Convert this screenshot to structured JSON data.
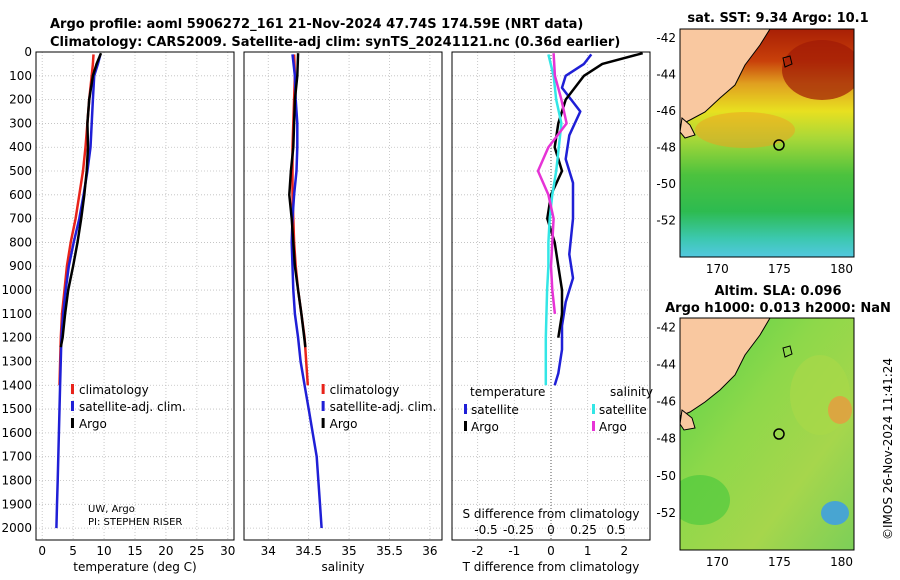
{
  "figure": {
    "title_line1": "Argo profile: aoml 5906272_161 21-Nov-2024 47.74S 174.59E (NRT data)",
    "title_line2": "Climatology: CARS2009. Satellite-adj clim: synTS_20241121.nc (0.36d earlier)",
    "credit_uw": "UW, Argo",
    "credit_pi": "PI: STEPHEN RISER",
    "timestamp": "©IMOS 26-Nov-2024 11:41:24"
  },
  "colors": {
    "climatology": "#e8231a",
    "satellite": "#1f1fd6",
    "argo": "#000000",
    "sal_sat": "#33e6e6",
    "sal_argo": "#e633d6",
    "land": "#f9c8a0"
  },
  "chart_data": [
    {
      "type": "line",
      "id": "temperature",
      "xlabel": "temperature (deg C)",
      "ylabel": "",
      "xlim": [
        -1,
        31
      ],
      "ylim": [
        2050,
        0
      ],
      "xticks": [
        0,
        5,
        10,
        15,
        20,
        25,
        30
      ],
      "yticks": [
        0,
        100,
        200,
        300,
        400,
        500,
        600,
        700,
        800,
        900,
        1000,
        1100,
        1200,
        1300,
        1400,
        1500,
        1600,
        1700,
        1800,
        1900,
        2000
      ],
      "legend": [
        "climatology",
        "satellite-adj. clim.",
        "Argo"
      ],
      "legend_position": "bottom-right",
      "grid": true,
      "series": [
        {
          "name": "climatology",
          "color": "#e8231a",
          "x": [
            8.3,
            8.2,
            8.0,
            7.6,
            7.3,
            7.0,
            6.6,
            6.0,
            5.4,
            4.6,
            4.0,
            3.6,
            3.2,
            3.0,
            2.8
          ],
          "y": [
            10,
            50,
            100,
            200,
            300,
            400,
            500,
            600,
            700,
            800,
            900,
            1000,
            1100,
            1200,
            1400
          ]
        },
        {
          "name": "satellite-adj. clim.",
          "color": "#1f1fd6",
          "x": [
            9.4,
            9.0,
            8.4,
            8.2,
            8.0,
            7.8,
            7.3,
            6.7,
            6.0,
            5.1,
            4.3,
            3.8,
            3.4,
            3.1,
            2.9,
            2.7,
            2.6,
            2.5,
            2.4,
            2.3
          ],
          "y": [
            10,
            50,
            100,
            200,
            300,
            400,
            500,
            600,
            700,
            800,
            900,
            1000,
            1100,
            1200,
            1400,
            1600,
            1700,
            1800,
            1900,
            2000
          ]
        },
        {
          "name": "Argo",
          "color": "#000000",
          "x": [
            9.5,
            8.8,
            8.2,
            7.6,
            7.3,
            7.4,
            7.2,
            6.8,
            6.3,
            5.7,
            5.0,
            4.2,
            3.7,
            3.3,
            3.0
          ],
          "y": [
            5,
            50,
            100,
            200,
            300,
            400,
            500,
            600,
            700,
            800,
            900,
            1000,
            1100,
            1200,
            1240
          ]
        }
      ]
    },
    {
      "type": "line",
      "id": "salinity",
      "xlabel": "salinity",
      "xlim": [
        33.7,
        36.15
      ],
      "ylim": [
        2050,
        0
      ],
      "xticks": [
        34,
        34.5,
        35,
        35.5,
        36
      ],
      "xtick_labels": [
        "34",
        "34.5",
        "35",
        "35.5",
        "36"
      ],
      "legend": [
        "climatology",
        "satellite-adj. clim.",
        "Argo"
      ],
      "legend_position": "bottom-right",
      "grid": true,
      "series": [
        {
          "name": "climatology",
          "color": "#e8231a",
          "x": [
            34.32,
            34.33,
            34.32,
            34.31,
            34.3,
            34.3,
            34.3,
            34.31,
            34.32,
            34.34,
            34.37,
            34.41,
            34.45,
            34.49
          ],
          "y": [
            10,
            100,
            200,
            300,
            400,
            500,
            600,
            700,
            800,
            900,
            1000,
            1100,
            1200,
            1400
          ]
        },
        {
          "name": "satellite-adj. clim.",
          "color": "#1f1fd6",
          "x": [
            34.3,
            34.33,
            34.34,
            34.36,
            34.36,
            34.35,
            34.32,
            34.3,
            34.29,
            34.3,
            34.31,
            34.33,
            34.37,
            34.4,
            34.45,
            34.5,
            34.55,
            34.6,
            34.64,
            34.66
          ],
          "y": [
            10,
            100,
            200,
            300,
            400,
            500,
            600,
            700,
            800,
            900,
            1000,
            1100,
            1200,
            1300,
            1400,
            1500,
            1600,
            1700,
            1900,
            2000
          ]
        },
        {
          "name": "Argo",
          "color": "#000000",
          "x": [
            34.37,
            34.36,
            34.33,
            34.32,
            34.31,
            34.28,
            34.26,
            34.29,
            34.31,
            34.33,
            34.37,
            34.41,
            34.46
          ],
          "y": [
            5,
            100,
            200,
            300,
            400,
            500,
            600,
            700,
            800,
            900,
            1000,
            1100,
            1240
          ]
        }
      ]
    },
    {
      "type": "line",
      "id": "differences",
      "xlabel": "T difference from climatology",
      "top_label": "S difference from climatology",
      "xlim": [
        -2.7,
        2.7
      ],
      "ylim": [
        2050,
        0
      ],
      "xticks": [
        -2,
        -1,
        0,
        1,
        2
      ],
      "xtick_labels": [
        "-2",
        "-1",
        "0",
        "1",
        "2"
      ],
      "sticks": [
        -0.5,
        -0.25,
        0,
        0.25,
        0.5
      ],
      "stick_labels": [
        "-0.5",
        "-0.25",
        "0",
        "0.25",
        "0.5"
      ],
      "legend_titles": [
        "temperature",
        "salinity"
      ],
      "legend": [
        "satellite",
        "Argo",
        "satellite",
        "Argo"
      ],
      "legend_position": "bottom",
      "grid": true,
      "series": [
        {
          "name": "temperature satellite",
          "color": "#1f1fd6",
          "x": [
            1.1,
            0.9,
            0.4,
            0.3,
            0.8,
            0.5,
            0.4,
            0.6,
            0.6,
            0.5,
            0.6,
            0.4,
            0.3,
            0.3,
            0.2,
            0.1
          ],
          "y": [
            10,
            50,
            100,
            150,
            250,
            350,
            450,
            550,
            700,
            850,
            950,
            1050,
            1150,
            1250,
            1350,
            1400
          ]
        },
        {
          "name": "temperature Argo",
          "color": "#000000",
          "x": [
            2.5,
            1.4,
            0.9,
            0.4,
            0.2,
            0.1,
            0.3,
            0.0,
            -0.1,
            0.1,
            0.2,
            0.3,
            0.3,
            0.2
          ],
          "y": [
            5,
            50,
            100,
            200,
            300,
            400,
            500,
            600,
            700,
            800,
            900,
            1000,
            1100,
            1200
          ]
        },
        {
          "name": "salinity satellite",
          "color": "#33e6e6",
          "x": [
            -0.02,
            0.02,
            0.04,
            0.08,
            0.06,
            0.04,
            0.01,
            -0.01,
            -0.02,
            -0.02,
            -0.03,
            -0.04,
            -0.04
          ],
          "y": [
            10,
            100,
            200,
            300,
            400,
            500,
            600,
            700,
            800,
            900,
            1000,
            1200,
            1400
          ]
        },
        {
          "name": "salinity Argo",
          "color": "#e633d6",
          "x": [
            0.02,
            0.03,
            0.08,
            0.12,
            -0.02,
            -0.1,
            -0.02,
            0.02,
            0.01,
            0.0,
            0.01,
            0.03
          ],
          "y": [
            5,
            100,
            200,
            300,
            400,
            500,
            600,
            700,
            800,
            900,
            1000,
            1100
          ]
        }
      ]
    },
    {
      "type": "heatmap",
      "id": "sst_map",
      "title": "sat. SST: 9.34 Argo: 10.1",
      "xticks": [
        170,
        175,
        180
      ],
      "yticks": [
        -42,
        -44,
        -46,
        -48,
        -50,
        -52
      ],
      "xlim": [
        167,
        181
      ],
      "ylim": [
        -54,
        -41.5
      ],
      "argo_position": [
        174.59,
        -47.74
      ]
    },
    {
      "type": "heatmap",
      "id": "sla_map",
      "title": "Altim. SLA: 0.096",
      "subtitle": "Argo h1000: 0.013 h2000: NaN",
      "xticks": [
        170,
        175,
        180
      ],
      "yticks": [
        -42,
        -44,
        -46,
        -48,
        -50,
        -52
      ],
      "xlim": [
        167,
        181
      ],
      "ylim": [
        -54,
        -41.5
      ],
      "argo_position": [
        174.59,
        -47.74
      ]
    }
  ]
}
